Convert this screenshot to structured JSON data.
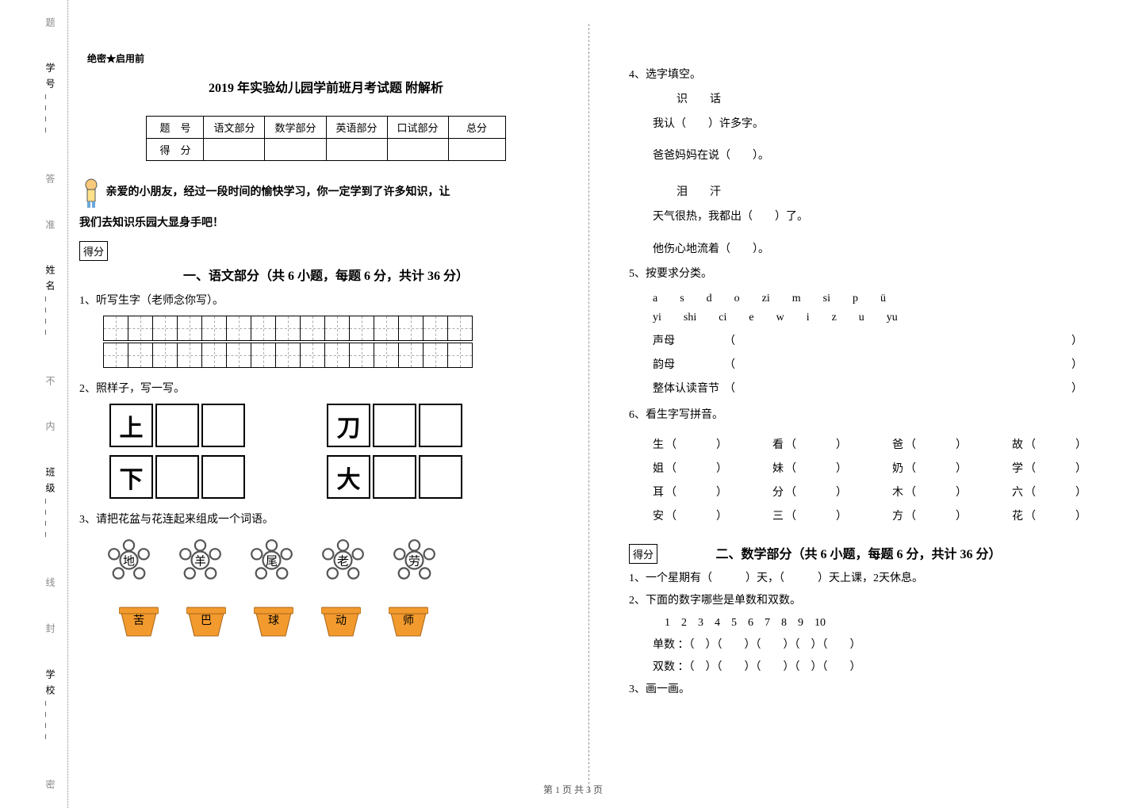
{
  "sidebar": {
    "fields": [
      "学校",
      "班级",
      "姓名",
      "学号"
    ],
    "segments": [
      "密",
      "封",
      "线",
      "内",
      "不",
      "准",
      "答",
      "题"
    ]
  },
  "header_small": "绝密★启用前",
  "title": "2019 年实验幼儿园学前班月考试题 附解析",
  "score_table": {
    "row1": [
      "题　号",
      "语文部分",
      "数学部分",
      "英语部分",
      "口试部分",
      "总分"
    ],
    "row2_label": "得　分"
  },
  "intro_line1": "亲爱的小朋友，经过一段时间的愉快学习，你一定学到了许多知识，让",
  "intro_line2": "我们去知识乐园大显身手吧！",
  "score_box": "得分",
  "section1_title": "一、语文部分（共 6 小题，每题 6 分，共计 36 分）",
  "q1": "1、听写生字（老师念你写）。",
  "q2": "2、照样子，写一写。",
  "copy_chars": {
    "r1a": "上",
    "r1b": "刀",
    "r2a": "下",
    "r2b": "大"
  },
  "q3": "3、请把花盆与花连起来组成一个词语。",
  "flowers": [
    "地",
    "羊",
    "尾",
    "老",
    "劳"
  ],
  "pots": [
    "苦",
    "巴",
    "球",
    "动",
    "师"
  ],
  "pot_color": "#f29a2e",
  "q4": "4、选字填空。",
  "q4_lines": {
    "pair1": "识　　话",
    "line1": "我认（　　）许多字。",
    "line2": "爸爸妈妈在说（　　）。",
    "pair2": "泪　　汗",
    "line3": "天气很热，我都出（　　）了。",
    "line4": "他伤心地流着（　　）。"
  },
  "q5": "5、按要求分类。",
  "pinyin_row1": [
    "a",
    "s",
    "d",
    "o",
    "zi",
    "m",
    "si",
    "p",
    "ü"
  ],
  "pinyin_row2": [
    "yi",
    "shi",
    "ci",
    "e",
    "w",
    "i",
    "z",
    "u",
    "yu"
  ],
  "categories": {
    "c1": "声母",
    "c2": "韵母",
    "c3": "整体认读音节"
  },
  "q6": "6、看生字写拼音。",
  "chars_rows": [
    [
      "生",
      "看",
      "爸",
      "故"
    ],
    [
      "姐",
      "妹",
      "奶",
      "学"
    ],
    [
      "耳",
      "分",
      "木",
      "六"
    ],
    [
      "安",
      "三",
      "方",
      "花"
    ]
  ],
  "section2_title": "二、数学部分（共 6 小题，每题 6 分，共计 36 分）",
  "math_q1": "1、一个星期有（　　　）天，（　　　）天上课，2天休息。",
  "math_q2": "2、下面的数字哪些是单数和双数。",
  "math_nums": "1　2　3　4　5　6　7　8　9　10",
  "math_odd": "单数 ：（　）（　　）（　　）（　）（　　）",
  "math_even": "双数 ：（　）（　　）（　　）（　）（　　）",
  "math_q3": "3、画一画。",
  "footer": "第 1 页 共 3 页"
}
